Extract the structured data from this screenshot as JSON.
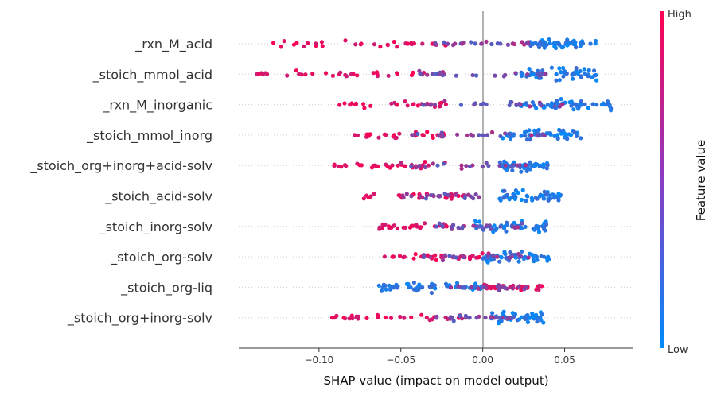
{
  "chart_data": {
    "type": "scatter",
    "subtype": "shap-beeswarm",
    "xlabel": "SHAP value (impact on model output)",
    "xticks": [
      "−0.10",
      "−0.05",
      "0.00",
      "0.05"
    ],
    "xtick_values": [
      -0.1,
      -0.05,
      0.0,
      0.05
    ],
    "xlim": [
      -0.149,
      0.092
    ],
    "grid": false,
    "legend": "colorbar-right",
    "colorbar": {
      "title": "Feature value",
      "high_label": "High",
      "low_label": "Low",
      "high_color": "#ff0052",
      "low_color": "#008bfb"
    },
    "features": [
      {
        "name": "_rxn_M_acid",
        "low_range": [
          0.025,
          0.07
        ],
        "high_range": [
          -0.135,
          -0.02
        ],
        "mid_range": [
          -0.03,
          0.03
        ]
      },
      {
        "name": "_stoich_mmol_acid",
        "low_range": [
          0.02,
          0.07
        ],
        "high_range": [
          -0.138,
          -0.03
        ],
        "mid_range": [
          -0.04,
          0.04
        ]
      },
      {
        "name": "_rxn_M_inorganic",
        "low_range": [
          0.02,
          0.08
        ],
        "high_range": [
          -0.09,
          -0.02
        ],
        "mid_range": [
          -0.04,
          0.05
        ]
      },
      {
        "name": "_stoich_mmol_inorg",
        "low_range": [
          0.01,
          0.06
        ],
        "high_range": [
          -0.08,
          -0.02
        ],
        "mid_range": [
          -0.05,
          0.04
        ]
      },
      {
        "name": "_stoich_org+inorg+acid-solv",
        "low_range": [
          0.01,
          0.04
        ],
        "high_range": [
          -0.095,
          -0.02
        ],
        "mid_range": [
          -0.05,
          0.03
        ]
      },
      {
        "name": "_stoich_acid-solv",
        "low_range": [
          0.01,
          0.048
        ],
        "high_range": [
          -0.075,
          -0.01
        ],
        "mid_range": [
          -0.05,
          0.0
        ]
      },
      {
        "name": "_stoich_inorg-solv",
        "low_range": [
          -0.005,
          0.04
        ],
        "high_range": [
          -0.073,
          -0.01
        ],
        "mid_range": [
          -0.03,
          0.03
        ]
      },
      {
        "name": "_stoich_org-solv",
        "low_range": [
          0.0,
          0.042
        ],
        "high_range": [
          -0.06,
          0.0
        ],
        "mid_range": [
          -0.04,
          0.03
        ]
      },
      {
        "name": "_stoich_org-liq",
        "low_range": [
          -0.065,
          0.0
        ],
        "high_range": [
          0.0,
          0.037
        ],
        "mid_range": [
          -0.02,
          0.03
        ]
      },
      {
        "name": "_stoich_org+inorg-solv",
        "low_range": [
          0.005,
          0.037
        ],
        "high_range": [
          -0.092,
          -0.01
        ],
        "mid_range": [
          -0.03,
          0.02
        ]
      }
    ]
  }
}
